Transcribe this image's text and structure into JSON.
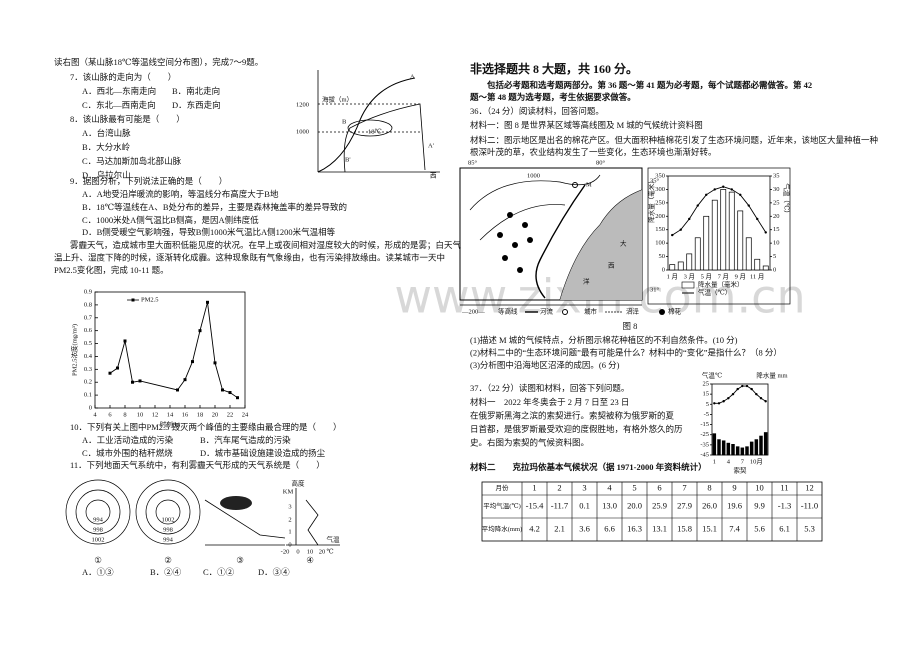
{
  "watermark": "www.zixin.com.cn",
  "left": {
    "intro": "读右图（某山脉18℃等温线空间分布图），完成7～9题。",
    "q7": {
      "stem": "7．该山脉的走向为（　　）",
      "options": [
        "A．西北—东南走向",
        "B．南北走向",
        "C．东北—西南走向",
        "D．东西走向"
      ]
    },
    "q8": {
      "stem": "8．该山脉最有可能是（　　）",
      "options": [
        "A．台湾山脉",
        "B．大分水岭",
        "C．马达加斯加岛北部山脉",
        "D．乌拉尔山"
      ]
    },
    "q9": {
      "stem": "9．据图分析，下列说法正确的是（　　）",
      "options": [
        "A．A地受沿岸暖流的影响，等温线分布高度大于B地",
        "B．18℃等温线在A、B处分布的差异，主要是森林掩盖率的差异导致的",
        "C．1000米处A侧气温比B侧高，是因A侧纬度低",
        "D．B侧受暖空气影响强，导致B侧1000米气温比A侧1200米气温相等"
      ]
    },
    "mountain_figure": {
      "labels": [
        "海拔（m）",
        "1200",
        "1000",
        "18℃",
        "A",
        "A'",
        "B",
        "B'",
        "西"
      ]
    },
    "passage": [
      "雾霾天气，造成城市里大面积低能见度的状况。在早上或夜间相对湿度较大的时候，形成的是雾；白天气",
      "温上升、湿度下降的时候，逐渐转化成霾。这种现象既有气象缘由，也有污染排放缘由。读某城市一天中",
      "PM2.5变化图，完成 10-11 题。"
    ],
    "pm_chart": {
      "type": "line",
      "x_label": "时刻(h)",
      "y_label": "PM2.5浓度(mg/m³)",
      "x": [
        6,
        7,
        8,
        9,
        10,
        15,
        16,
        17,
        18,
        19,
        20,
        21,
        22,
        23
      ],
      "series": [
        {
          "name": "PM2.5",
          "color": "#000000",
          "values": [
            0.27,
            0.31,
            0.52,
            0.2,
            0.21,
            0.14,
            0.22,
            0.36,
            0.6,
            0.82,
            0.35,
            0.14,
            0.12,
            0.08
          ]
        }
      ],
      "xlim": [
        4,
        24
      ],
      "xticks": [
        4,
        6,
        8,
        10,
        12,
        14,
        16,
        18,
        20,
        22,
        24
      ],
      "ylim": [
        0,
        0.9
      ],
      "yticks": [
        0,
        0.1,
        0.2,
        0.3,
        0.4,
        0.5,
        0.6,
        0.7,
        0.8,
        0.9
      ],
      "legend": "upper-left"
    },
    "q10": {
      "stem": "10．下列有关上图中PM2.5 毁灭两个峰值的主要缘由最合理的是（　　）",
      "options": [
        "A．工业活动造成的污染",
        "B．汽车尾气造成的污染",
        "C．城市外围的秸秆燃烧",
        "D．城市基础设施建设造成的扬尘"
      ]
    },
    "q11": {
      "stem": "11．下列地面天气系统中，有利雾霾天气形成的天气系统是（　　）",
      "options": [
        "A．①③",
        "B．②④",
        "C．①②",
        "D．③④"
      ]
    },
    "weather_figure": {
      "system1": [
        "994",
        "998",
        "1002"
      ],
      "system2": [
        "1002",
        "998",
        "994"
      ],
      "numbers": [
        "①",
        "②",
        "③",
        "④"
      ],
      "profile_labels": [
        "高度",
        "KM",
        "3",
        "2",
        "1",
        "0",
        "-20",
        "0",
        "10",
        "20",
        "℃",
        "气温"
      ]
    }
  },
  "right": {
    "heading": "非选择题共 8 大题，共 160 分。",
    "instructions": [
      "包括必考题和选考题两部分。第 36 题～第 41 题为必考题，每个试题都必需做答。第 42",
      "题～第 48 题为选考题，考生依据要求做答。"
    ],
    "q36": {
      "stem": "36．（24 分）阅读材料，回答问题。",
      "material1": "材料一：图 8 是世界某区域等高线图及 M 城的气候统计资料图",
      "material2": [
        "材料二：图示地区是出名的棉花产区。但大面积种植棉花引发了生态环境问题，近年来，该地区大量种植一种",
        "根深叶茂的草，农业结构发生了一些变化，生态环境也渐渐好转。"
      ],
      "map": {
        "labels": [
          "85°",
          "80°",
          "35°",
          "31°",
          "M",
          "1000",
          "大",
          "西",
          "洋"
        ],
        "legend": [
          "—200—",
          "等高线",
          "河流",
          "城市",
          "沼泽",
          "棉花"
        ],
        "caption": "图 8"
      },
      "climate_chart": {
        "type": "bar",
        "y_label": "降水量（毫米）",
        "y2_label": "气温（℃）",
        "categories": [
          "1 月",
          null,
          "3 月",
          null,
          "5 月",
          null,
          "7 月",
          null,
          "9 月",
          null,
          "11 月",
          null
        ],
        "series": [
          {
            "name": "降水量（毫米）",
            "type": "bar",
            "color": "#ffffff",
            "values": [
              20,
              30,
              60,
              120,
              200,
              260,
              300,
              290,
              220,
              120,
              40,
              15
            ]
          },
          {
            "name": "气温（℃）",
            "type": "line",
            "axis": "y2",
            "color": "#000000",
            "values": [
              13,
              15,
              19,
              24,
              28,
              30,
              31,
              30,
              28,
              24,
              19,
              14
            ]
          }
        ],
        "ylim": [
          0,
          350
        ],
        "yticks": [
          0,
          50,
          100,
          150,
          200,
          250,
          300,
          350
        ],
        "y2lim": [
          0,
          35
        ],
        "y2ticks": [
          0,
          5,
          10,
          15,
          20,
          25,
          30,
          35
        ]
      },
      "questions": [
        "(1)描述 M 城的气候特点，分析图示棉花种植区的不利自然条件。(10 分)",
        "(2)材料二中的“生态环境问题”最有可能是什么？材料中的“变化”是指什么？（8 分）",
        "(3)分析图中沿海地区沼泽的成因。(6 分)"
      ]
    },
    "q37": {
      "stem": "37．（22 分）读图和材料，回答下列问题。",
      "material1": [
        "材料一　2022 年冬奥会于 2 月 7 日至 23 日",
        "在俄罗斯黑海之滨的索契进行。索契被称为俄罗斯的夏",
        "日首都，是俄罗斯最受欢迎的度假胜地，有格外悠久的历",
        "史。右图为索契的气候资料图。"
      ],
      "sochi_chart": {
        "type": "bar",
        "y_label": "气温℃",
        "y2_label": "降水量 mm",
        "caption": "索契",
        "categories": [
          "1",
          null,
          null,
          "4",
          null,
          null,
          "7",
          null,
          null,
          "10月",
          null,
          null
        ],
        "series": [
          {
            "name": "降水量",
            "type": "bar",
            "axis": "y2",
            "color": "#000000",
            "values": [
              180,
              130,
              120,
              100,
              90,
              70,
              60,
              70,
              110,
              130,
              160,
              190
            ]
          },
          {
            "name": "气温",
            "type": "line",
            "color": "#000000",
            "values": [
              6,
              6,
              8,
              11,
              15,
              20,
              23,
              23,
              20,
              15,
              11,
              8
            ]
          }
        ],
        "ylim": [
          -45,
          25
        ],
        "yticks": [
          -45,
          -35,
          -25,
          -15,
          -5,
          5,
          15,
          25
        ],
        "y2lim": [
          0,
          600
        ]
      },
      "material2": "材料二　　克拉玛依基本气候状况（据 1971-2000 年资料统计）",
      "table": {
        "rows": [
          [
            "月份",
            "1",
            "2",
            "3",
            "4",
            "5",
            "6",
            "7",
            "8",
            "9",
            "10",
            "11",
            "12"
          ],
          [
            "平均气温(℃)",
            "-15.4",
            "-11.7",
            "0.1",
            "13.0",
            "20.0",
            "25.9",
            "27.9",
            "26.0",
            "19.6",
            "9.9",
            "-1.3",
            "-11.0"
          ],
          [
            "平均降水(mm)",
            "4.2",
            "2.1",
            "3.6",
            "6.6",
            "16.3",
            "13.1",
            "15.8",
            "15.1",
            "7.4",
            "5.6",
            "6.1",
            "5.3"
          ]
        ]
      }
    }
  }
}
